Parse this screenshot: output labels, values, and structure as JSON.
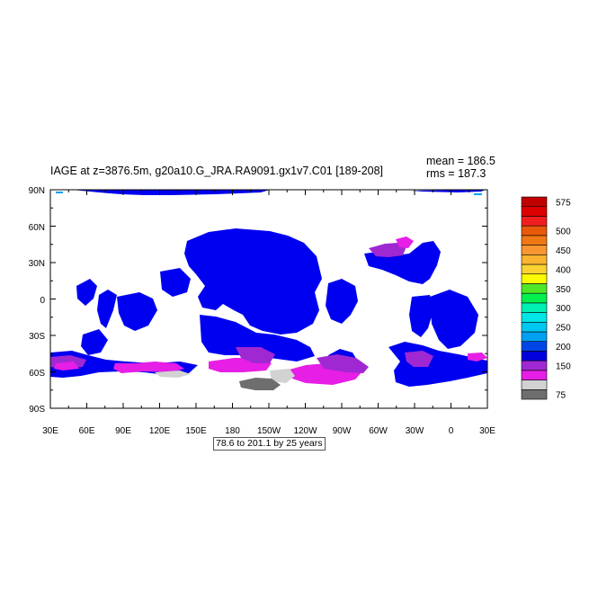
{
  "title": "IAGE at z=3876.5m, g20a10.G_JRA.RA9091.gx1v7.C01 [189-208]",
  "stats": {
    "mean": "mean = 186.5",
    "rms": "rms = 187.3"
  },
  "range_note": "78.6 to 201.1 by 25 years",
  "lat_ticks": [
    "90N",
    "60N",
    "30N",
    "0",
    "30S",
    "60S",
    "90S"
  ],
  "lon_ticks": [
    "30E",
    "60E",
    "90E",
    "120E",
    "150E",
    "180",
    "150W",
    "120W",
    "90W",
    "60W",
    "30W",
    "0",
    "30E"
  ],
  "colorbar": {
    "colors": [
      "#6e6e6e",
      "#d2d2d2",
      "#e61ee6",
      "#a028d2",
      "#0000dc",
      "#0046e6",
      "#00a0f0",
      "#00c8f0",
      "#00e6e6",
      "#00f0b4",
      "#00f050",
      "#50e628",
      "#fafa00",
      "#fad232",
      "#fab432",
      "#fa9632",
      "#f07814",
      "#e65a0a",
      "#f01e1e",
      "#dc0000",
      "#c00000"
    ],
    "labels": [
      {
        "text": "575",
        "slot": 20
      },
      {
        "text": "500",
        "slot": 17
      },
      {
        "text": "450",
        "slot": 15
      },
      {
        "text": "400",
        "slot": 13
      },
      {
        "text": "350",
        "slot": 11
      },
      {
        "text": "300",
        "slot": 9
      },
      {
        "text": "250",
        "slot": 7
      },
      {
        "text": "200",
        "slot": 5
      },
      {
        "text": "150",
        "slot": 3
      },
      {
        "text": "75",
        "slot": 0
      }
    ]
  },
  "map_colors": {
    "deep": "#0000f0",
    "purple": "#a028d2",
    "magenta": "#e61ee6",
    "grey": "#6e6e6e",
    "light_grey": "#d2d2d2",
    "cyan": "#00a0f0"
  }
}
